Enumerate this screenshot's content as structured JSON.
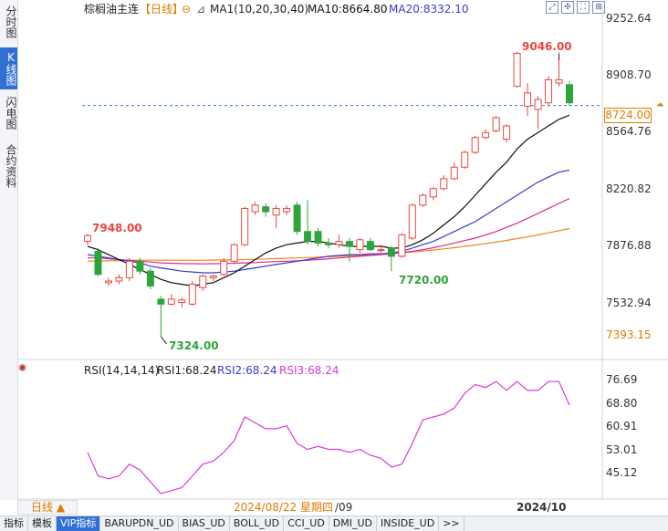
{
  "sidebar": {
    "tabs": [
      {
        "label": "分时图",
        "active": false
      },
      {
        "label": "K线图",
        "active": true
      },
      {
        "label": "闪电图",
        "active": false
      },
      {
        "label": "合约资料",
        "active": false
      }
    ]
  },
  "header": {
    "symbol": "棕榈油主连",
    "period_tag": "【日线】",
    "ma_label": "MA1(10,20,30,40)",
    "ma10": "MA10:8664.80",
    "ma20": "MA20:8332.10"
  },
  "rsi_header": {
    "label": "RSI(14,14,14)",
    "rsi1": "RSI1:68.24",
    "rsi2": "RSI2:68.24",
    "rsi3": "RSI3:68.24"
  },
  "price_axis": {
    "ticks": [
      "9252.64",
      "8908.70",
      "8564.76",
      "8220.82",
      "7876.88",
      "7532.94"
    ],
    "current": "8724.00",
    "low_marker": "7393.15"
  },
  "rsi_axis": {
    "ticks": [
      "76.69",
      "68.80",
      "60.91",
      "53.01",
      "45.12"
    ]
  },
  "annotations": {
    "high": "9046.00",
    "left_high": "7948.00",
    "low": "7324.00",
    "mid_low": "7720.00"
  },
  "x_axis": {
    "cursor_date": "2024/08/22 星期四",
    "tick1": "/09",
    "tick2": "2024/10"
  },
  "period_selector": {
    "label": "日线 ▲"
  },
  "bottom_tabs": [
    "指标",
    "模板",
    "VIP指标",
    "BARUPDN_UD",
    "BIAS_UD",
    "BOLL_UD",
    "CCI_UD",
    "DMI_UD",
    "INSIDE_UD",
    ">>"
  ],
  "colors": {
    "up": "#e8473f",
    "down": "#2ea43c",
    "ma10": "#111111",
    "ma20": "#3a3acd",
    "ma30": "#e0268f",
    "ma40": "#e88a1a",
    "rsi": "#d63bd6",
    "dashed": "#3a7bd5"
  },
  "chart_data": {
    "type": "candlestick",
    "ylim": [
      7324,
      9252.64
    ],
    "candles": [
      {
        "o": 7900,
        "c": 7935,
        "h": 7948,
        "l": 7880
      },
      {
        "o": 7840,
        "c": 7700,
        "h": 7860,
        "l": 7690
      },
      {
        "o": 7650,
        "c": 7660,
        "h": 7680,
        "l": 7630
      },
      {
        "o": 7660,
        "c": 7680,
        "h": 7700,
        "l": 7640
      },
      {
        "o": 7680,
        "c": 7780,
        "h": 7800,
        "l": 7660
      },
      {
        "o": 7780,
        "c": 7720,
        "h": 7800,
        "l": 7700
      },
      {
        "o": 7720,
        "c": 7630,
        "h": 7740,
        "l": 7610
      },
      {
        "o": 7550,
        "c": 7520,
        "h": 7570,
        "l": 7324
      },
      {
        "o": 7520,
        "c": 7550,
        "h": 7580,
        "l": 7510
      },
      {
        "o": 7530,
        "c": 7545,
        "h": 7560,
        "l": 7500
      },
      {
        "o": 7520,
        "c": 7640,
        "h": 7660,
        "l": 7510
      },
      {
        "o": 7620,
        "c": 7690,
        "h": 7700,
        "l": 7600
      },
      {
        "o": 7680,
        "c": 7690,
        "h": 7700,
        "l": 7660
      },
      {
        "o": 7700,
        "c": 7780,
        "h": 7800,
        "l": 7690
      },
      {
        "o": 7780,
        "c": 7880,
        "h": 7890,
        "l": 7770
      },
      {
        "o": 7880,
        "c": 8100,
        "h": 8110,
        "l": 7870
      },
      {
        "o": 8080,
        "c": 8120,
        "h": 8140,
        "l": 8060
      },
      {
        "o": 8110,
        "c": 8080,
        "h": 8130,
        "l": 8050
      },
      {
        "o": 8060,
        "c": 8100,
        "h": 8120,
        "l": 7980
      },
      {
        "o": 8080,
        "c": 8100,
        "h": 8120,
        "l": 8060
      },
      {
        "o": 8120,
        "c": 7960,
        "h": 8140,
        "l": 7940
      },
      {
        "o": 7960,
        "c": 7900,
        "h": 8150,
        "l": 7880
      },
      {
        "o": 7960,
        "c": 7890,
        "h": 7980,
        "l": 7870
      },
      {
        "o": 7890,
        "c": 7880,
        "h": 7920,
        "l": 7860
      },
      {
        "o": 7880,
        "c": 7900,
        "h": 7940,
        "l": 7860
      },
      {
        "o": 7900,
        "c": 7870,
        "h": 7920,
        "l": 7780
      },
      {
        "o": 7850,
        "c": 7910,
        "h": 7920,
        "l": 7830
      },
      {
        "o": 7900,
        "c": 7850,
        "h": 7920,
        "l": 7840
      },
      {
        "o": 7850,
        "c": 7850,
        "h": 7880,
        "l": 7820
      },
      {
        "o": 7860,
        "c": 7810,
        "h": 7870,
        "l": 7720
      },
      {
        "o": 7810,
        "c": 7940,
        "h": 7950,
        "l": 7800
      },
      {
        "o": 7920,
        "c": 8120,
        "h": 8130,
        "l": 7910
      },
      {
        "o": 8120,
        "c": 8180,
        "h": 8190,
        "l": 8110
      },
      {
        "o": 8170,
        "c": 8220,
        "h": 8230,
        "l": 8150
      },
      {
        "o": 8220,
        "c": 8280,
        "h": 8300,
        "l": 8210
      },
      {
        "o": 8280,
        "c": 8350,
        "h": 8380,
        "l": 8270
      },
      {
        "o": 8350,
        "c": 8440,
        "h": 8450,
        "l": 8340
      },
      {
        "o": 8440,
        "c": 8530,
        "h": 8540,
        "l": 8430
      },
      {
        "o": 8530,
        "c": 8560,
        "h": 8580,
        "l": 8520
      },
      {
        "o": 8570,
        "c": 8650,
        "h": 8660,
        "l": 8560
      },
      {
        "o": 8520,
        "c": 8600,
        "h": 8610,
        "l": 8500
      },
      {
        "o": 8840,
        "c": 9040,
        "h": 9050,
        "l": 8830
      },
      {
        "o": 8720,
        "c": 8800,
        "h": 8860,
        "l": 8660
      },
      {
        "o": 8700,
        "c": 8760,
        "h": 8780,
        "l": 8580
      },
      {
        "o": 8740,
        "c": 8880,
        "h": 8900,
        "l": 8720
      },
      {
        "o": 8860,
        "c": 8880,
        "h": 9046,
        "l": 8840
      },
      {
        "o": 8850,
        "c": 8740,
        "h": 8870,
        "l": 8720
      }
    ],
    "ma10": [
      7870,
      7850,
      7820,
      7790,
      7760,
      7730,
      7700,
      7670,
      7650,
      7640,
      7630,
      7640,
      7650,
      7680,
      7710,
      7750,
      7790,
      7830,
      7860,
      7880,
      7890,
      7900,
      7900,
      7890,
      7880,
      7870,
      7870,
      7870,
      7870,
      7860,
      7860,
      7880,
      7910,
      7950,
      8000,
      8050,
      8110,
      8180,
      8250,
      8320,
      8380,
      8460,
      8520,
      8560,
      8600,
      8640,
      8665
    ],
    "ma20": [
      7820,
      7810,
      7800,
      7790,
      7780,
      7770,
      7750,
      7740,
      7730,
      7720,
      7715,
      7710,
      7710,
      7715,
      7720,
      7730,
      7740,
      7750,
      7760,
      7770,
      7780,
      7790,
      7800,
      7810,
      7815,
      7820,
      7820,
      7825,
      7825,
      7830,
      7840,
      7860,
      7880,
      7900,
      7930,
      7960,
      7990,
      8020,
      8060,
      8100,
      8140,
      8180,
      8220,
      8260,
      8290,
      8320,
      8332
    ],
    "ma30": [
      7800,
      7800,
      7795,
      7790,
      7785,
      7780,
      7775,
      7770,
      7768,
      7766,
      7765,
      7764,
      7765,
      7766,
      7768,
      7770,
      7772,
      7775,
      7778,
      7780,
      7783,
      7786,
      7790,
      7795,
      7800,
      7805,
      7810,
      7815,
      7820,
      7825,
      7832,
      7840,
      7850,
      7862,
      7875,
      7890,
      7905,
      7920,
      7940,
      7960,
      7985,
      8010,
      8040,
      8070,
      8100,
      8130,
      8160
    ],
    "ma40": [
      7780,
      7782,
      7783,
      7784,
      7785,
      7786,
      7786,
      7786,
      7786,
      7786,
      7786,
      7786,
      7787,
      7788,
      7789,
      7790,
      7792,
      7794,
      7796,
      7798,
      7800,
      7802,
      7805,
      7808,
      7810,
      7813,
      7816,
      7820,
      7823,
      7827,
      7831,
      7836,
      7842,
      7848,
      7855,
      7862,
      7870,
      7878,
      7887,
      7896,
      7906,
      7917,
      7928,
      7940,
      7952,
      7965,
      7978
    ],
    "rsi": [
      52,
      44,
      43,
      44,
      48,
      46,
      42,
      38,
      39,
      40,
      44,
      48,
      49,
      52,
      56,
      64,
      62,
      60,
      60,
      61,
      55,
      53,
      54,
      53,
      53,
      52,
      53,
      51,
      50,
      47,
      48,
      55,
      63,
      64,
      65,
      67,
      72,
      75,
      74,
      76,
      73,
      76,
      73,
      73,
      76,
      76,
      68
    ]
  }
}
